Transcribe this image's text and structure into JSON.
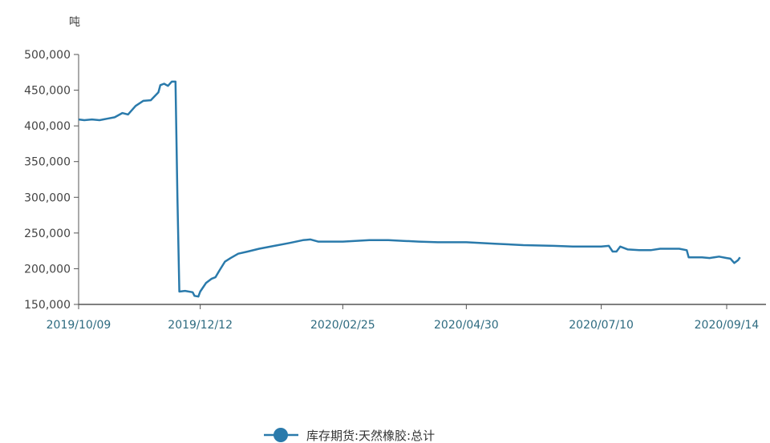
{
  "chart_data": {
    "type": "line",
    "title": "",
    "xlabel": "",
    "ylabel": "吨",
    "ylim": [
      150000,
      500000
    ],
    "y_ticks": [
      150000,
      200000,
      250000,
      300000,
      350000,
      400000,
      450000,
      500000
    ],
    "y_tick_labels": [
      "150,000",
      "200,000",
      "250,000",
      "300,000",
      "350,000",
      "400,000",
      "450,000",
      "500,000"
    ],
    "x_range": [
      "2019-10-09",
      "2020-09-14"
    ],
    "x_ticks": [
      "2019-10-09",
      "2019-12-12",
      "2020-02-25",
      "2020-04-30",
      "2020-07-10",
      "2020-09-14"
    ],
    "x_tick_labels": [
      "2019/10/09",
      "2019/12/12",
      "2020/02/25",
      "2020/04/30",
      "2020/07/10",
      "2020/09/14"
    ],
    "grid": false,
    "legend_position": "bottom-center",
    "series": [
      {
        "name": "库存期货:天然橡胶:总计",
        "color": "#2a7aab",
        "points": [
          [
            "2019-10-09",
            409000
          ],
          [
            "2019-10-12",
            408000
          ],
          [
            "2019-10-16",
            409000
          ],
          [
            "2019-10-20",
            408000
          ],
          [
            "2019-10-24",
            410000
          ],
          [
            "2019-10-28",
            412000
          ],
          [
            "2019-11-01",
            418000
          ],
          [
            "2019-11-04",
            416000
          ],
          [
            "2019-11-08",
            428000
          ],
          [
            "2019-11-12",
            435000
          ],
          [
            "2019-11-16",
            436000
          ],
          [
            "2019-11-20",
            447000
          ],
          [
            "2019-11-21",
            457000
          ],
          [
            "2019-11-23",
            459000
          ],
          [
            "2019-11-25",
            456000
          ],
          [
            "2019-11-27",
            462000
          ],
          [
            "2019-11-29",
            462000
          ],
          [
            "2019-11-30",
            300000
          ],
          [
            "2019-12-01",
            168000
          ],
          [
            "2019-12-04",
            169000
          ],
          [
            "2019-12-08",
            167000
          ],
          [
            "2019-12-09",
            162000
          ],
          [
            "2019-12-11",
            161000
          ],
          [
            "2019-12-12",
            168000
          ],
          [
            "2019-12-15",
            180000
          ],
          [
            "2019-12-18",
            186000
          ],
          [
            "2019-12-20",
            188000
          ],
          [
            "2019-12-22",
            197000
          ],
          [
            "2019-12-25",
            210000
          ],
          [
            "2019-12-28",
            215000
          ],
          [
            "2020-01-01",
            221000
          ],
          [
            "2020-01-06",
            224000
          ],
          [
            "2020-01-12",
            228000
          ],
          [
            "2020-01-20",
            232000
          ],
          [
            "2020-01-28",
            236000
          ],
          [
            "2020-02-04",
            240000
          ],
          [
            "2020-02-08",
            241000
          ],
          [
            "2020-02-12",
            238000
          ],
          [
            "2020-02-25",
            238000
          ],
          [
            "2020-03-10",
            240000
          ],
          [
            "2020-03-20",
            240000
          ],
          [
            "2020-03-28",
            239000
          ],
          [
            "2020-04-05",
            238000
          ],
          [
            "2020-04-15",
            237000
          ],
          [
            "2020-04-30",
            237000
          ],
          [
            "2020-05-15",
            235000
          ],
          [
            "2020-05-30",
            233000
          ],
          [
            "2020-06-15",
            232000
          ],
          [
            "2020-06-25",
            231000
          ],
          [
            "2020-07-10",
            231000
          ],
          [
            "2020-07-14",
            232000
          ],
          [
            "2020-07-16",
            224000
          ],
          [
            "2020-07-18",
            224000
          ],
          [
            "2020-07-20",
            231000
          ],
          [
            "2020-07-24",
            227000
          ],
          [
            "2020-07-30",
            226000
          ],
          [
            "2020-08-05",
            226000
          ],
          [
            "2020-08-10",
            228000
          ],
          [
            "2020-08-20",
            228000
          ],
          [
            "2020-08-24",
            226000
          ],
          [
            "2020-08-25",
            216000
          ],
          [
            "2020-09-01",
            216000
          ],
          [
            "2020-09-05",
            215000
          ],
          [
            "2020-09-10",
            217000
          ],
          [
            "2020-09-14",
            215000
          ],
          [
            "2020-09-16",
            214000
          ],
          [
            "2020-09-18",
            208000
          ],
          [
            "2020-09-20",
            212000
          ],
          [
            "2020-09-21",
            216000
          ]
        ]
      }
    ]
  }
}
